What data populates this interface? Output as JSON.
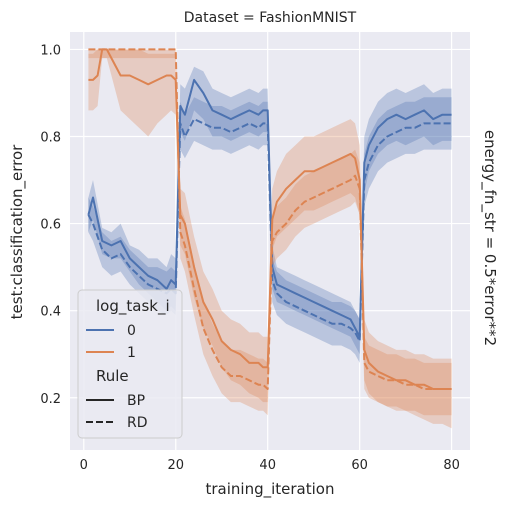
{
  "chart_data": {
    "type": "line",
    "title": "Dataset = FashionMNIST",
    "side_label": "energy_fn_str = 0.5*error**2",
    "xlabel": "training_iteration",
    "ylabel": "test:classification_error",
    "xlim": [
      -3,
      84
    ],
    "ylim": [
      0.08,
      1.04
    ],
    "xticks": [
      0,
      20,
      40,
      60,
      80
    ],
    "yticks": [
      0.2,
      0.4,
      0.6,
      0.8,
      1.0
    ],
    "grid": true,
    "legend": {
      "placement": "lower-left",
      "hue_title": "log_task_i",
      "hue_entries": [
        {
          "label": "0",
          "color": "#4c72b0"
        },
        {
          "label": "1",
          "color": "#dd8452"
        }
      ],
      "style_title": "Rule",
      "style_entries": [
        {
          "label": "BP",
          "dash": "solid"
        },
        {
          "label": "RD",
          "dash": "dashed"
        }
      ]
    },
    "series": [
      {
        "task": "0",
        "rule": "BP",
        "color": "#4c72b0",
        "dash": "solid",
        "x": [
          1,
          2,
          4,
          6,
          8,
          10,
          12,
          14,
          16,
          18,
          19,
          20,
          21,
          22,
          24,
          26,
          28,
          30,
          32,
          34,
          36,
          38,
          39,
          40,
          41,
          42,
          44,
          46,
          48,
          50,
          52,
          54,
          56,
          58,
          59,
          60,
          61,
          62,
          64,
          66,
          68,
          70,
          72,
          74,
          76,
          78,
          80
        ],
        "y": [
          0.62,
          0.66,
          0.56,
          0.55,
          0.56,
          0.52,
          0.5,
          0.48,
          0.47,
          0.45,
          0.47,
          0.46,
          0.87,
          0.85,
          0.93,
          0.9,
          0.86,
          0.85,
          0.84,
          0.85,
          0.86,
          0.85,
          0.86,
          0.86,
          0.5,
          0.46,
          0.45,
          0.44,
          0.43,
          0.42,
          0.41,
          0.4,
          0.39,
          0.38,
          0.36,
          0.34,
          0.74,
          0.78,
          0.82,
          0.84,
          0.85,
          0.84,
          0.85,
          0.86,
          0.84,
          0.85,
          0.85
        ],
        "lower": [
          0.58,
          0.61,
          0.53,
          0.52,
          0.52,
          0.49,
          0.46,
          0.44,
          0.42,
          0.4,
          0.41,
          0.4,
          0.81,
          0.79,
          0.86,
          0.84,
          0.8,
          0.8,
          0.79,
          0.8,
          0.81,
          0.8,
          0.81,
          0.81,
          0.45,
          0.42,
          0.41,
          0.4,
          0.39,
          0.38,
          0.37,
          0.36,
          0.35,
          0.34,
          0.32,
          0.3,
          0.67,
          0.72,
          0.76,
          0.78,
          0.79,
          0.78,
          0.79,
          0.8,
          0.78,
          0.79,
          0.79
        ],
        "upper": [
          0.66,
          0.7,
          0.59,
          0.58,
          0.6,
          0.55,
          0.54,
          0.52,
          0.52,
          0.5,
          0.53,
          0.52,
          0.92,
          0.91,
          0.96,
          0.95,
          0.91,
          0.9,
          0.89,
          0.9,
          0.91,
          0.9,
          0.91,
          0.91,
          0.55,
          0.5,
          0.49,
          0.48,
          0.47,
          0.46,
          0.45,
          0.44,
          0.43,
          0.42,
          0.4,
          0.38,
          0.8,
          0.84,
          0.88,
          0.9,
          0.91,
          0.9,
          0.91,
          0.92,
          0.9,
          0.91,
          0.91
        ]
      },
      {
        "task": "0",
        "rule": "RD",
        "color": "#4c72b0",
        "dash": "dashed",
        "x": [
          1,
          2,
          4,
          6,
          8,
          10,
          12,
          14,
          16,
          18,
          19,
          20,
          21,
          22,
          24,
          26,
          28,
          30,
          32,
          34,
          36,
          38,
          39,
          40,
          41,
          42,
          44,
          46,
          48,
          50,
          52,
          54,
          56,
          58,
          59,
          60,
          61,
          62,
          64,
          66,
          68,
          70,
          72,
          74,
          76,
          78,
          80
        ],
        "y": [
          0.62,
          0.6,
          0.54,
          0.52,
          0.53,
          0.5,
          0.48,
          0.46,
          0.45,
          0.44,
          0.45,
          0.44,
          0.83,
          0.8,
          0.84,
          0.83,
          0.82,
          0.82,
          0.81,
          0.82,
          0.83,
          0.82,
          0.83,
          0.83,
          0.47,
          0.44,
          0.42,
          0.41,
          0.4,
          0.39,
          0.38,
          0.37,
          0.37,
          0.36,
          0.35,
          0.33,
          0.7,
          0.74,
          0.78,
          0.8,
          0.81,
          0.82,
          0.82,
          0.83,
          0.83,
          0.83,
          0.83
        ],
        "lower": [
          0.58,
          0.56,
          0.5,
          0.48,
          0.49,
          0.46,
          0.44,
          0.42,
          0.4,
          0.39,
          0.4,
          0.39,
          0.77,
          0.75,
          0.79,
          0.78,
          0.77,
          0.77,
          0.76,
          0.77,
          0.78,
          0.77,
          0.78,
          0.78,
          0.42,
          0.39,
          0.37,
          0.36,
          0.35,
          0.34,
          0.33,
          0.32,
          0.32,
          0.31,
          0.3,
          0.28,
          0.64,
          0.68,
          0.72,
          0.74,
          0.75,
          0.76,
          0.76,
          0.77,
          0.77,
          0.77,
          0.77
        ],
        "upper": [
          0.66,
          0.64,
          0.58,
          0.56,
          0.57,
          0.54,
          0.52,
          0.5,
          0.5,
          0.49,
          0.5,
          0.49,
          0.88,
          0.85,
          0.89,
          0.88,
          0.87,
          0.87,
          0.86,
          0.87,
          0.88,
          0.87,
          0.88,
          0.88,
          0.52,
          0.49,
          0.47,
          0.46,
          0.45,
          0.44,
          0.43,
          0.42,
          0.42,
          0.41,
          0.4,
          0.38,
          0.76,
          0.8,
          0.84,
          0.86,
          0.87,
          0.88,
          0.88,
          0.89,
          0.89,
          0.89,
          0.89
        ]
      },
      {
        "task": "1",
        "rule": "BP",
        "color": "#dd8452",
        "dash": "solid",
        "x": [
          1,
          2,
          3,
          4,
          5,
          6,
          8,
          10,
          12,
          14,
          16,
          18,
          19,
          20,
          21,
          22,
          24,
          26,
          28,
          30,
          32,
          34,
          36,
          38,
          39,
          40,
          41,
          42,
          44,
          46,
          48,
          50,
          52,
          54,
          56,
          58,
          59,
          60,
          61,
          62,
          64,
          66,
          68,
          70,
          72,
          74,
          76,
          78,
          80
        ],
        "y": [
          0.93,
          0.93,
          0.94,
          1.0,
          1.0,
          0.98,
          0.94,
          0.94,
          0.93,
          0.92,
          0.93,
          0.94,
          0.94,
          0.93,
          0.62,
          0.6,
          0.5,
          0.42,
          0.38,
          0.33,
          0.31,
          0.3,
          0.28,
          0.28,
          0.27,
          0.27,
          0.61,
          0.65,
          0.68,
          0.7,
          0.72,
          0.72,
          0.73,
          0.74,
          0.75,
          0.76,
          0.75,
          0.7,
          0.31,
          0.28,
          0.26,
          0.25,
          0.24,
          0.24,
          0.23,
          0.23,
          0.22,
          0.22,
          0.22
        ],
        "lower": [
          0.86,
          0.86,
          0.87,
          0.98,
          0.98,
          0.94,
          0.86,
          0.84,
          0.82,
          0.8,
          0.83,
          0.85,
          0.86,
          0.85,
          0.55,
          0.53,
          0.43,
          0.36,
          0.32,
          0.27,
          0.24,
          0.23,
          0.21,
          0.2,
          0.19,
          0.19,
          0.54,
          0.57,
          0.59,
          0.61,
          0.63,
          0.63,
          0.64,
          0.65,
          0.66,
          0.67,
          0.66,
          0.62,
          0.24,
          0.21,
          0.19,
          0.18,
          0.17,
          0.17,
          0.16,
          0.15,
          0.14,
          0.14,
          0.13
        ],
        "upper": [
          0.99,
          0.99,
          1.0,
          1.0,
          1.0,
          1.0,
          1.0,
          1.0,
          1.0,
          0.99,
          0.99,
          0.99,
          0.99,
          0.99,
          0.68,
          0.67,
          0.57,
          0.49,
          0.45,
          0.4,
          0.38,
          0.37,
          0.35,
          0.35,
          0.34,
          0.34,
          0.68,
          0.72,
          0.76,
          0.78,
          0.8,
          0.8,
          0.81,
          0.82,
          0.83,
          0.84,
          0.83,
          0.78,
          0.38,
          0.35,
          0.33,
          0.32,
          0.31,
          0.31,
          0.3,
          0.3,
          0.29,
          0.29,
          0.29
        ]
      },
      {
        "task": "1",
        "rule": "RD",
        "color": "#dd8452",
        "dash": "dashed",
        "x": [
          1,
          2,
          3,
          4,
          5,
          6,
          8,
          10,
          12,
          14,
          16,
          18,
          19,
          20,
          21,
          22,
          24,
          26,
          28,
          30,
          32,
          34,
          36,
          38,
          39,
          40,
          41,
          42,
          44,
          46,
          48,
          50,
          52,
          54,
          56,
          58,
          59,
          60,
          61,
          62,
          64,
          66,
          68,
          70,
          72,
          74,
          76,
          78,
          80
        ],
        "y": [
          1.0,
          1.0,
          1.0,
          1.0,
          1.0,
          1.0,
          1.0,
          1.0,
          1.0,
          1.0,
          1.0,
          1.0,
          1.0,
          1.0,
          0.58,
          0.55,
          0.45,
          0.36,
          0.31,
          0.27,
          0.25,
          0.25,
          0.24,
          0.23,
          0.23,
          0.22,
          0.56,
          0.58,
          0.6,
          0.63,
          0.65,
          0.66,
          0.67,
          0.68,
          0.69,
          0.7,
          0.71,
          0.68,
          0.28,
          0.26,
          0.25,
          0.24,
          0.24,
          0.23,
          0.23,
          0.22,
          0.22,
          0.22,
          0.22
        ],
        "lower": [
          0.98,
          0.98,
          0.98,
          0.98,
          0.98,
          0.98,
          0.98,
          0.98,
          0.98,
          0.98,
          0.98,
          0.98,
          0.98,
          0.98,
          0.52,
          0.49,
          0.39,
          0.3,
          0.25,
          0.21,
          0.19,
          0.19,
          0.18,
          0.17,
          0.17,
          0.16,
          0.5,
          0.52,
          0.54,
          0.57,
          0.59,
          0.6,
          0.61,
          0.62,
          0.63,
          0.64,
          0.65,
          0.62,
          0.22,
          0.2,
          0.19,
          0.18,
          0.18,
          0.17,
          0.17,
          0.16,
          0.16,
          0.16,
          0.16
        ],
        "upper": [
          1.0,
          1.0,
          1.0,
          1.0,
          1.0,
          1.0,
          1.0,
          1.0,
          1.0,
          1.0,
          1.0,
          1.0,
          1.0,
          1.0,
          0.64,
          0.61,
          0.51,
          0.42,
          0.37,
          0.33,
          0.31,
          0.31,
          0.3,
          0.29,
          0.29,
          0.28,
          0.62,
          0.64,
          0.66,
          0.69,
          0.71,
          0.72,
          0.73,
          0.74,
          0.75,
          0.76,
          0.77,
          0.74,
          0.34,
          0.32,
          0.31,
          0.3,
          0.3,
          0.29,
          0.29,
          0.28,
          0.28,
          0.28,
          0.28
        ]
      }
    ]
  }
}
